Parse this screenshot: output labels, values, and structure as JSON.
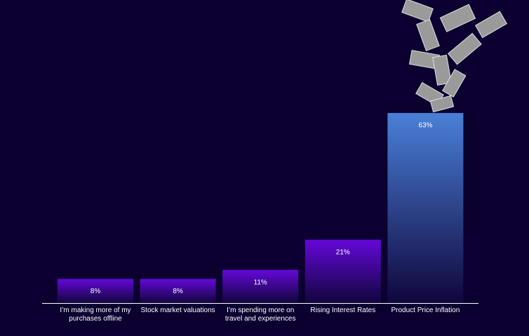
{
  "chart_data": {
    "type": "bar",
    "categories": [
      "I’m making more of my purchases offline",
      "Stock market valuations",
      "I’m spending more on travel and experiences",
      "Rising Interest Rates",
      "Product Price Inflation"
    ],
    "values": [
      8,
      8,
      11,
      21,
      63
    ],
    "value_labels": [
      "8%",
      "8%",
      "11%",
      "21%",
      "63%"
    ],
    "colors": [
      "#6408d8",
      "#6408d8",
      "#6408d8",
      "#6408d8",
      "#4a80d8"
    ]
  }
}
